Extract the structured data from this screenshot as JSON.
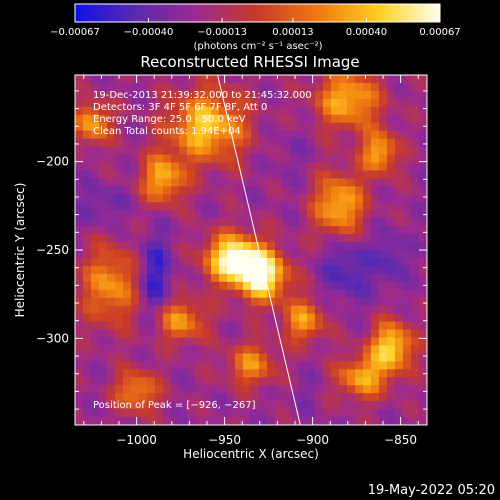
{
  "chart_data": {
    "type": "heatmap",
    "title": "Reconstructed RHESSI Image",
    "xlabel": "Heliocentric X (arcsec)",
    "ylabel": "Heliocentric Y (arcsec)",
    "xlim": [
      -1035,
      -835
    ],
    "ylim": [
      -349,
      -151
    ],
    "x_ticks": [
      -1000,
      -950,
      -900,
      -850
    ],
    "x_tick_labels": [
      "−1000",
      "−950",
      "−900",
      "−850"
    ],
    "y_ticks": [
      -200,
      -250,
      -300
    ],
    "y_tick_labels": [
      "−200",
      "−250",
      "−300"
    ],
    "colorbar": {
      "range": [
        -0.00067,
        0.00067
      ],
      "ticks": [
        -0.00067,
        -0.0004,
        -0.00013,
        0.00013,
        0.0004,
        0.00067
      ],
      "tick_labels": [
        "−0.00067",
        "−0.00040",
        "−0.00013",
        "0.00013",
        "0.00040",
        "0.00067"
      ],
      "units_label": "(photons cm⁻² s⁻¹ asec⁻²)",
      "colors": [
        "#1010e8",
        "#5a2ab0",
        "#9b2a90",
        "#c83a2a",
        "#f07a10",
        "#ffd020",
        "#fffff0"
      ]
    },
    "info_lines": [
      "19-Dec-2013 21:39:32.000 to 21:45:32.000",
      "Detectors: 3F 4F 5F 6F 7F 8F, Att 0",
      "Energy Range: 25.0 - 50.0 keV",
      "Clean    Total counts: 1.94E+04"
    ],
    "peak_label": "Position of Peak = [−926, −267]",
    "peak_position": [
      -926,
      -267
    ],
    "limb_line": [
      [
        -954,
        -151
      ],
      [
        -907,
        -349
      ]
    ],
    "blobs": [
      {
        "x": -960,
        "y": -180,
        "w": 22,
        "h": 20,
        "v": 0.00045
      },
      {
        "x": -945,
        "y": -255,
        "w": 16,
        "h": 14,
        "v": 0.00067
      },
      {
        "x": -928,
        "y": -265,
        "w": 14,
        "h": 14,
        "v": 0.0006
      },
      {
        "x": -880,
        "y": -165,
        "w": 18,
        "h": 16,
        "v": 0.0004
      },
      {
        "x": -885,
        "y": -225,
        "w": 14,
        "h": 18,
        "v": 0.00042
      },
      {
        "x": -862,
        "y": -195,
        "w": 10,
        "h": 12,
        "v": 0.00038
      },
      {
        "x": -855,
        "y": -305,
        "w": 12,
        "h": 14,
        "v": 0.0005
      },
      {
        "x": -872,
        "y": -322,
        "w": 14,
        "h": 12,
        "v": 0.00035
      },
      {
        "x": -1015,
        "y": -270,
        "w": 16,
        "h": 22,
        "v": 0.0003
      },
      {
        "x": -1025,
        "y": -178,
        "w": 10,
        "h": 12,
        "v": 0.00035
      },
      {
        "x": -985,
        "y": -210,
        "w": 12,
        "h": 14,
        "v": 0.00038
      },
      {
        "x": -975,
        "y": -290,
        "w": 14,
        "h": 12,
        "v": 0.0003
      },
      {
        "x": -1000,
        "y": -330,
        "w": 12,
        "h": 12,
        "v": 0.00028
      },
      {
        "x": -935,
        "y": -315,
        "w": 14,
        "h": 12,
        "v": 0.00025
      },
      {
        "x": -905,
        "y": -290,
        "w": 12,
        "h": 12,
        "v": 0.0003
      },
      {
        "x": -990,
        "y": -265,
        "w": 10,
        "h": 24,
        "v": -0.00055
      },
      {
        "x": -1020,
        "y": -225,
        "w": 12,
        "h": 12,
        "v": -0.0004
      },
      {
        "x": -880,
        "y": -260,
        "w": 14,
        "h": 20,
        "v": -0.0005
      },
      {
        "x": -855,
        "y": -255,
        "w": 8,
        "h": 16,
        "v": -0.00045
      },
      {
        "x": -915,
        "y": -195,
        "w": 12,
        "h": 18,
        "v": -0.0003
      },
      {
        "x": -905,
        "y": -330,
        "w": 10,
        "h": 10,
        "v": -0.0003
      }
    ]
  },
  "footer": {
    "timestamp": "19-May-2022 05:20"
  }
}
